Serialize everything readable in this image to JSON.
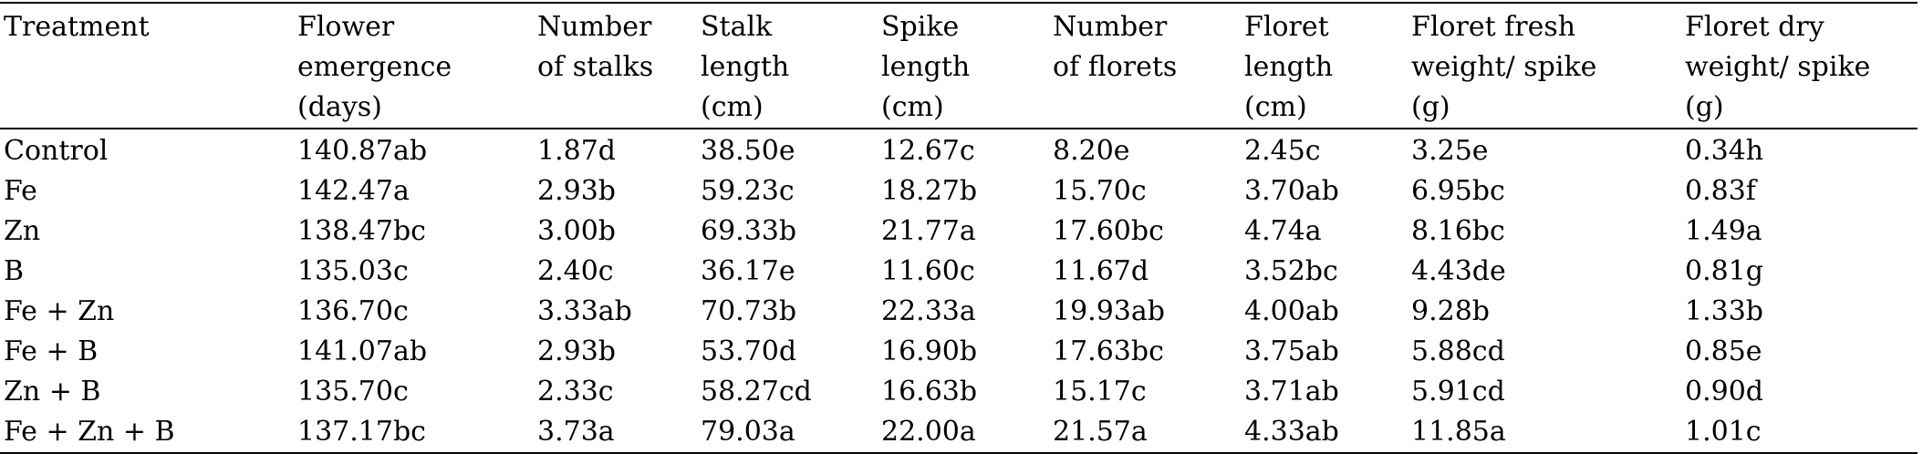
{
  "table": {
    "headers": [
      "Treatment",
      "Flower\nemergence\n(days)",
      "Number\nof stalks",
      "Stalk\nlength\n(cm)",
      "Spike\nlength\n(cm)",
      "Number\nof florets",
      "Floret\nlength\n(cm)",
      "Floret fresh\nweight/ spike\n(g)",
      "Floret dry\nweight/ spike\n(g)"
    ],
    "rows": [
      [
        "Control",
        "140.87ab",
        "1.87d",
        "38.50e",
        "12.67c",
        "8.20e",
        "2.45c",
        "3.25e",
        "0.34h"
      ],
      [
        "Fe",
        "142.47a",
        "2.93b",
        "59.23c",
        "18.27b",
        "15.70c",
        "3.70ab",
        "6.95bc",
        "0.83f"
      ],
      [
        "Zn",
        "138.47bc",
        "3.00b",
        "69.33b",
        "21.77a",
        "17.60bc",
        "4.74a",
        "8.16bc",
        "1.49a"
      ],
      [
        "B",
        "135.03c",
        "2.40c",
        "36.17e",
        "11.60c",
        "11.67d",
        "3.52bc",
        " 4.43de",
        "0.81g"
      ],
      [
        "Fe + Zn",
        "136.70c",
        "3.33ab",
        "70.73b",
        "22.33a",
        "19.93ab",
        "4.00ab",
        "9.28b",
        "1.33b"
      ],
      [
        "Fe + B",
        "141.07ab",
        "2.93b",
        "53.70d",
        "16.90b",
        "17.63bc",
        "3.75ab",
        "5.88cd",
        "0.85e"
      ],
      [
        "Zn + B",
        "135.70c",
        "2.33c",
        "58.27cd",
        "16.63b",
        "15.17c",
        "3.71ab",
        "5.91cd",
        "0.90d"
      ],
      [
        "Fe + Zn + B",
        "137.17bc",
        "3.73a",
        "79.03a",
        "22.00a",
        "21.57a",
        "4.33ab",
        "11.85a",
        "1.01c"
      ]
    ]
  }
}
